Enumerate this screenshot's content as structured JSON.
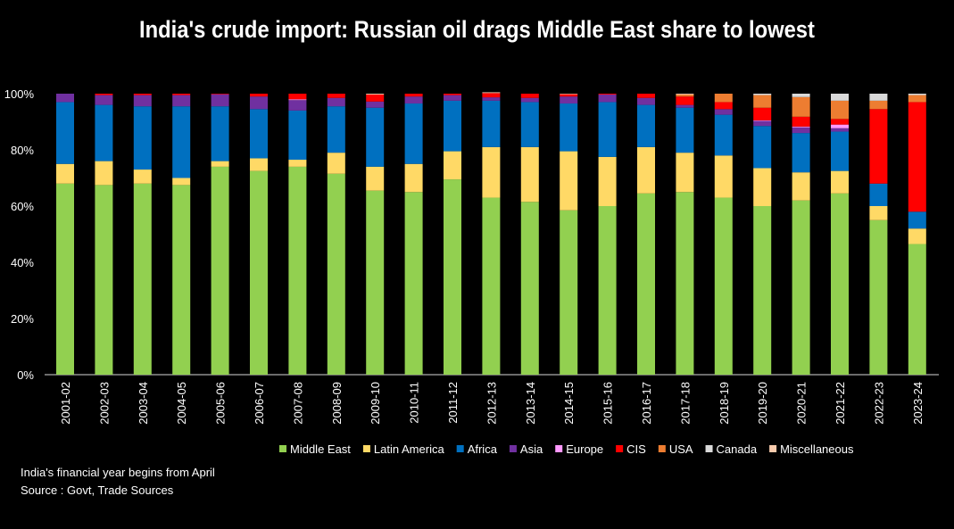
{
  "chart_data": {
    "type": "bar",
    "stacked": true,
    "title": "India's crude import: Russian oil drags Middle East share to lowest",
    "xlabel": "",
    "ylabel": "",
    "ylim": [
      0,
      100
    ],
    "yticks": [
      "0%",
      "20%",
      "40%",
      "60%",
      "80%",
      "100%"
    ],
    "grid": false,
    "legend": "bottom",
    "categories": [
      "2001-02",
      "2002-03",
      "2003-04",
      "2004-05",
      "2005-06",
      "2006-07",
      "2007-08",
      "2008-09",
      "2009-10",
      "2010-11",
      "2011-12",
      "2012-13",
      "2013-14",
      "2014-15",
      "2015-16",
      "2016-17",
      "2017-18",
      "2018-19",
      "2019-20",
      "2020-21",
      "2021-22",
      "2022-23",
      "2023-24"
    ],
    "series": [
      {
        "name": "Middle East",
        "color": "#92d050",
        "values": [
          68,
          67.5,
          68,
          67.5,
          74,
          72.5,
          74,
          71.5,
          65.5,
          65,
          69.5,
          63,
          61.5,
          58.5,
          60,
          64.5,
          65,
          63,
          60,
          62,
          64.5,
          55,
          46.5
        ]
      },
      {
        "name": "Latin America",
        "color": "#ffd966",
        "values": [
          7,
          8.5,
          5,
          2.5,
          2,
          4.5,
          2.5,
          7.5,
          8.5,
          10,
          10,
          18,
          19.5,
          21,
          17.5,
          16.5,
          14,
          15,
          13.5,
          10,
          8,
          5,
          5.5
        ]
      },
      {
        "name": "Africa",
        "color": "#0070c0",
        "values": [
          22,
          20,
          22.5,
          25.5,
          19.5,
          17.5,
          17.5,
          16.5,
          21,
          21.5,
          18,
          16.5,
          16,
          17,
          19.5,
          15,
          16,
          14.5,
          15,
          14,
          14,
          8,
          6
        ]
      },
      {
        "name": "Asia",
        "color": "#7030a0",
        "values": [
          3,
          3.5,
          4,
          4,
          4.3,
          4.5,
          3.7,
          3,
          2.2,
          2.5,
          2,
          1.2,
          1.5,
          2.5,
          2.7,
          2.5,
          1,
          2,
          1.8,
          2,
          1.2,
          0,
          0
        ]
      },
      {
        "name": "Europe",
        "color": "#ff99ff",
        "values": [
          0,
          0,
          0,
          0,
          0,
          0,
          0.3,
          0,
          0,
          0,
          0,
          0,
          0,
          0,
          0,
          0,
          0,
          0,
          0.2,
          0.3,
          1.3,
          0,
          0
        ]
      },
      {
        "name": "CIS",
        "color": "#ff0000",
        "values": [
          0,
          0.5,
          0.5,
          0.5,
          0.2,
          1,
          2,
          1.5,
          2.5,
          1,
          0.5,
          1.5,
          1.5,
          0.8,
          0.3,
          1.5,
          3,
          2.5,
          4.5,
          3.5,
          2,
          26.5,
          39
        ]
      },
      {
        "name": "USA",
        "color": "#ed7d31",
        "values": [
          0,
          0,
          0,
          0,
          0,
          0,
          0,
          0,
          0,
          0,
          0,
          0,
          0,
          0,
          0,
          0,
          0.7,
          3,
          4.5,
          7,
          6.5,
          3,
          2.5
        ]
      },
      {
        "name": "Canada",
        "color": "#d9d9d9",
        "values": [
          0,
          0,
          0,
          0,
          0,
          0,
          0,
          0,
          0,
          0,
          0,
          0,
          0,
          0,
          0,
          0,
          0,
          0,
          0.5,
          1.2,
          2.5,
          2.5,
          0.5
        ]
      },
      {
        "name": "Miscellaneous",
        "color": "#f8cbad",
        "values": [
          0,
          0,
          0,
          0,
          0,
          0,
          0,
          0,
          0.3,
          0,
          0,
          0.3,
          0,
          0.2,
          0,
          0,
          0.3,
          0,
          0,
          0,
          0,
          0,
          0
        ]
      }
    ],
    "notes": [
      "India's financial year begins from April",
      "Source : Govt, Trade Sources"
    ]
  }
}
